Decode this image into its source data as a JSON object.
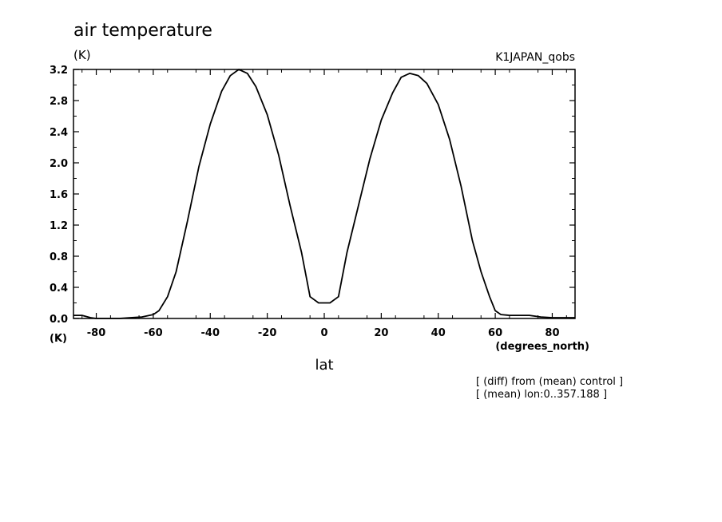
{
  "chart_data": {
    "type": "line",
    "title": "air temperature",
    "units": "(K)",
    "source": "K1JAPAN_qobs",
    "xlabel": "lat",
    "x_units": "(degrees_north)",
    "y_units_bottom": "(K)",
    "xlim": [
      -88,
      88
    ],
    "ylim": [
      0,
      3.2
    ],
    "x_ticks": [
      -80,
      -60,
      -40,
      -20,
      0,
      20,
      40,
      60,
      80
    ],
    "x_tick_labels": [
      "-80",
      "-60",
      "-40",
      "-20",
      "0",
      "20",
      "40",
      "60",
      "80"
    ],
    "y_ticks": [
      0,
      0.4,
      0.8,
      1.2,
      1.6,
      2.0,
      2.4,
      2.8,
      3.2
    ],
    "y_tick_labels": [
      "0.0",
      "0.4",
      "0.8",
      "1.2",
      "1.6",
      "2.0",
      "2.4",
      "2.8",
      "3.2"
    ],
    "grid": false,
    "notes": [
      "[ (diff) from (mean) control ]",
      "[ (mean) lon:0..357.188 ]"
    ],
    "series": [
      {
        "x": [
          -88,
          -85,
          -82,
          -80,
          -76,
          -72,
          -68,
          -64,
          -60,
          -58,
          -55,
          -52,
          -48,
          -44,
          -40,
          -36,
          -33,
          -30,
          -27,
          -24,
          -20,
          -16,
          -12,
          -8,
          -5,
          -2,
          0,
          2,
          5,
          8,
          12,
          16,
          20,
          24,
          27,
          30,
          33,
          36,
          40,
          44,
          48,
          52,
          55,
          58,
          60,
          62,
          65,
          68,
          70,
          72,
          76,
          80,
          84,
          88
        ],
        "y": [
          0.04,
          0.04,
          0.01,
          0.0,
          0.0,
          0.0,
          0.01,
          0.02,
          0.05,
          0.1,
          0.28,
          0.6,
          1.25,
          1.95,
          2.5,
          2.92,
          3.12,
          3.2,
          3.15,
          2.98,
          2.62,
          2.1,
          1.45,
          0.85,
          0.28,
          0.2,
          0.2,
          0.2,
          0.28,
          0.85,
          1.45,
          2.05,
          2.55,
          2.9,
          3.1,
          3.15,
          3.12,
          3.02,
          2.75,
          2.3,
          1.7,
          1.0,
          0.6,
          0.28,
          0.1,
          0.05,
          0.04,
          0.04,
          0.04,
          0.04,
          0.02,
          0.01,
          0.01,
          0.01
        ]
      }
    ]
  }
}
